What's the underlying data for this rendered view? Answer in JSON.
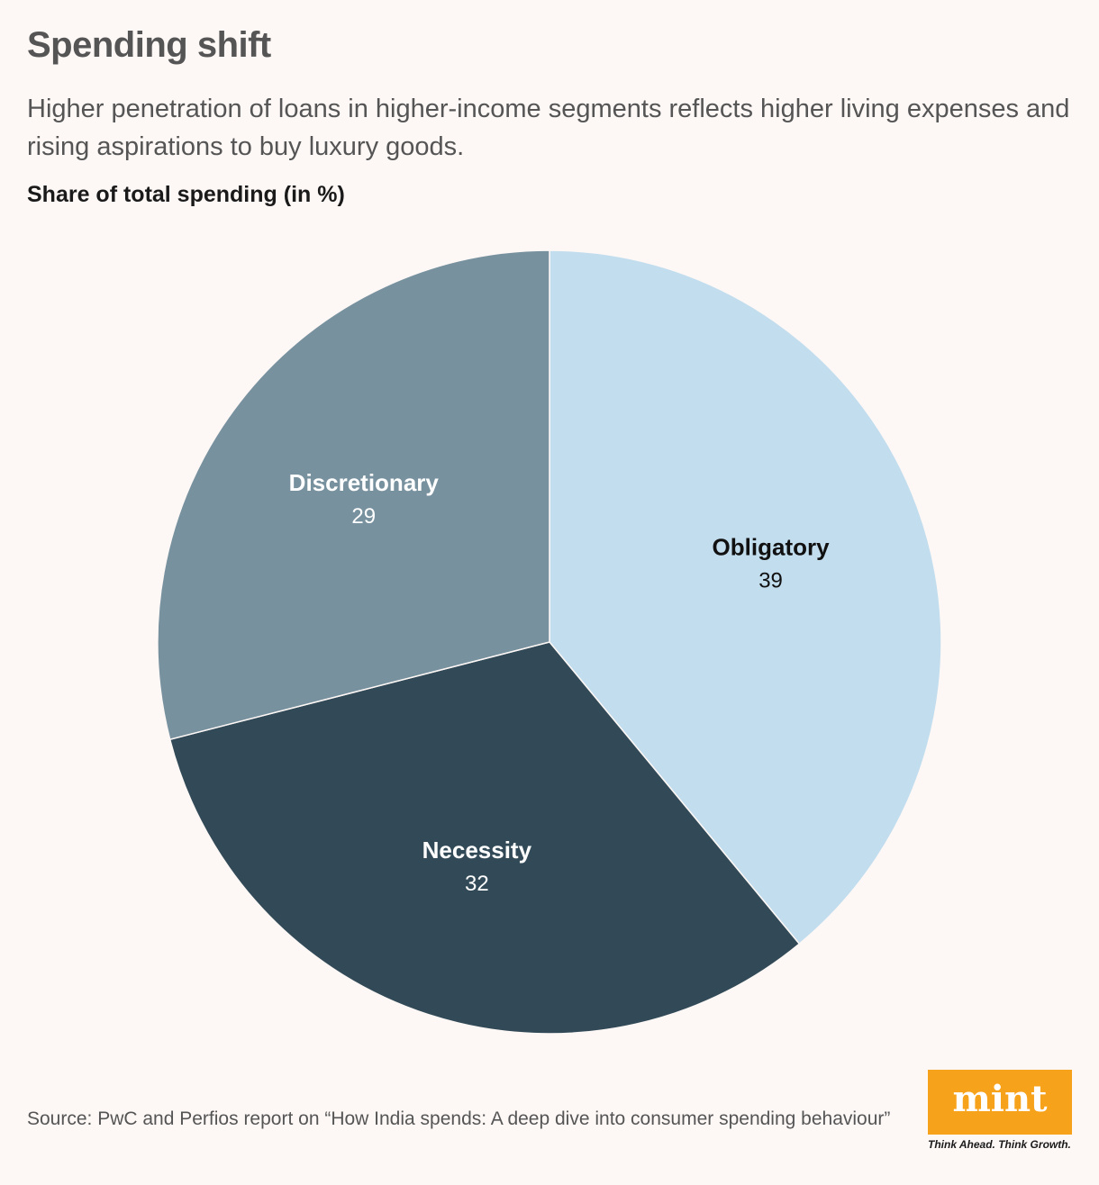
{
  "header": {
    "title": "Spending shift",
    "subtitle": "Higher penetration of loans in higher-income segments reflects higher living expenses and rising aspirations to buy luxury goods.",
    "chart_label": "Share of total spending (in %)"
  },
  "chart_data": {
    "type": "pie",
    "title": "Spending shift",
    "subtitle": "Share of total spending (in %)",
    "slices": [
      {
        "label": "Obligatory",
        "value": 39,
        "color": "#c2ddee",
        "text_color": "#111111"
      },
      {
        "label": "Necessity",
        "value": 32,
        "color": "#324a57",
        "text_color": "#ffffff"
      },
      {
        "label": "Discretionary",
        "value": 29,
        "color": "#78919f",
        "text_color": "#ffffff"
      }
    ],
    "start": "12 o'clock",
    "direction": "clockwise",
    "legend": "none"
  },
  "footer": {
    "source": "Source: PwC and Perfios report on “How India spends: A deep dive into consumer spending behaviour”",
    "logo_text": "mint",
    "tagline": "Think Ahead. Think Growth.",
    "logo_color": "#f7a21b"
  }
}
